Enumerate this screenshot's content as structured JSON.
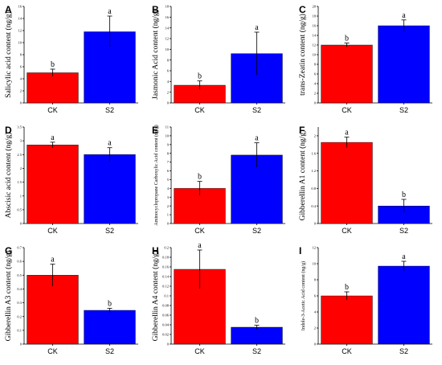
{
  "colors": {
    "CK": "#ff0000",
    "S2": "#0000ff",
    "error": "#000000"
  },
  "chart_data": [
    {
      "type": "bar",
      "letter": "A",
      "ylabel": "Salicylic acid content (ng/g)",
      "categories": [
        "CK",
        "S2"
      ],
      "values": [
        5.0,
        11.8
      ],
      "errors": [
        0.6,
        2.6
      ],
      "significance": [
        "b",
        "a"
      ],
      "ylim": [
        0,
        16
      ],
      "yticks": [
        0,
        2,
        4,
        6,
        8,
        10,
        12,
        14,
        16
      ]
    },
    {
      "type": "bar",
      "letter": "B",
      "ylabel": "Jasmonic Acid content (ng/g)",
      "categories": [
        "CK",
        "S2"
      ],
      "values": [
        3.3,
        9.2
      ],
      "errors": [
        0.8,
        4.0
      ],
      "significance": [
        "b",
        "a"
      ],
      "ylim": [
        0,
        18
      ],
      "yticks": [
        0,
        2,
        4,
        6,
        8,
        10,
        12,
        14,
        16,
        18
      ]
    },
    {
      "type": "bar",
      "letter": "C",
      "ylabel": "trans-Zeatin content (ng/g)",
      "categories": [
        "CK",
        "S2"
      ],
      "values": [
        12.0,
        16.0
      ],
      "errors": [
        0.4,
        1.2
      ],
      "significance": [
        "b",
        "a"
      ],
      "ylim": [
        0,
        20
      ],
      "yticks": [
        0,
        2,
        4,
        6,
        8,
        10,
        12,
        14,
        16,
        18,
        20
      ]
    },
    {
      "type": "bar",
      "letter": "D",
      "ylabel": "Abscisic acid content (ng/g)",
      "categories": [
        "CK",
        "S2"
      ],
      "values": [
        2.85,
        2.5
      ],
      "errors": [
        0.1,
        0.25
      ],
      "significance": [
        "a",
        "a"
      ],
      "ylim": [
        0,
        3.5
      ],
      "yticks": [
        0,
        0.5,
        1,
        1.5,
        2,
        2.5,
        3,
        3.5
      ]
    },
    {
      "type": "bar",
      "letter": "E",
      "ylabel": "Aminocyclopropane Carboxylic Acid content (ng/g)",
      "categories": [
        "CK",
        "S2"
      ],
      "values": [
        4.0,
        7.8
      ],
      "errors": [
        0.8,
        1.4
      ],
      "significance": [
        "b",
        "a"
      ],
      "ylim": [
        0,
        11
      ],
      "yticks": [
        0,
        1,
        2,
        3,
        4,
        5,
        6,
        7,
        8,
        9,
        10,
        11
      ]
    },
    {
      "type": "bar",
      "letter": "F",
      "ylabel": "Gibberellin A1 content (ng/g)",
      "categories": [
        "CK",
        "S2"
      ],
      "values": [
        1.85,
        0.4
      ],
      "errors": [
        0.12,
        0.15
      ],
      "significance": [
        "a",
        "b"
      ],
      "ylim": [
        0,
        2.2
      ],
      "yticks": [
        0,
        0.4,
        0.8,
        1.2,
        1.6,
        2.0
      ]
    },
    {
      "type": "bar",
      "letter": "G",
      "ylabel": "Gibberellin A3 content (ng/g)",
      "categories": [
        "CK",
        "S2"
      ],
      "values": [
        0.5,
        0.245
      ],
      "errors": [
        0.08,
        0.015
      ],
      "significance": [
        "a",
        "b"
      ],
      "ylim": [
        0,
        0.7
      ],
      "yticks": [
        0,
        0.1,
        0.2,
        0.3,
        0.4,
        0.5,
        0.6,
        0.7
      ]
    },
    {
      "type": "bar",
      "letter": "H",
      "ylabel": "Gibberellin A4 content (ng/g)",
      "categories": [
        "CK",
        "S2"
      ],
      "values": [
        0.155,
        0.035
      ],
      "errors": [
        0.04,
        0.004
      ],
      "significance": [
        "a",
        "b"
      ],
      "ylim": [
        0,
        0.2
      ],
      "yticks": [
        0,
        0.02,
        0.04,
        0.06,
        0.08,
        0.1,
        0.12,
        0.14,
        0.16,
        0.18,
        0.2
      ]
    },
    {
      "type": "bar",
      "letter": "I",
      "ylabel": "Indole-3-Acetic Acid content (ng/g)",
      "categories": [
        "CK",
        "S2"
      ],
      "values": [
        6.0,
        9.7
      ],
      "errors": [
        0.5,
        0.6
      ],
      "significance": [
        "b",
        "a"
      ],
      "ylim": [
        0,
        12
      ],
      "yticks": [
        0,
        2,
        4,
        6,
        8,
        10,
        12
      ]
    }
  ]
}
